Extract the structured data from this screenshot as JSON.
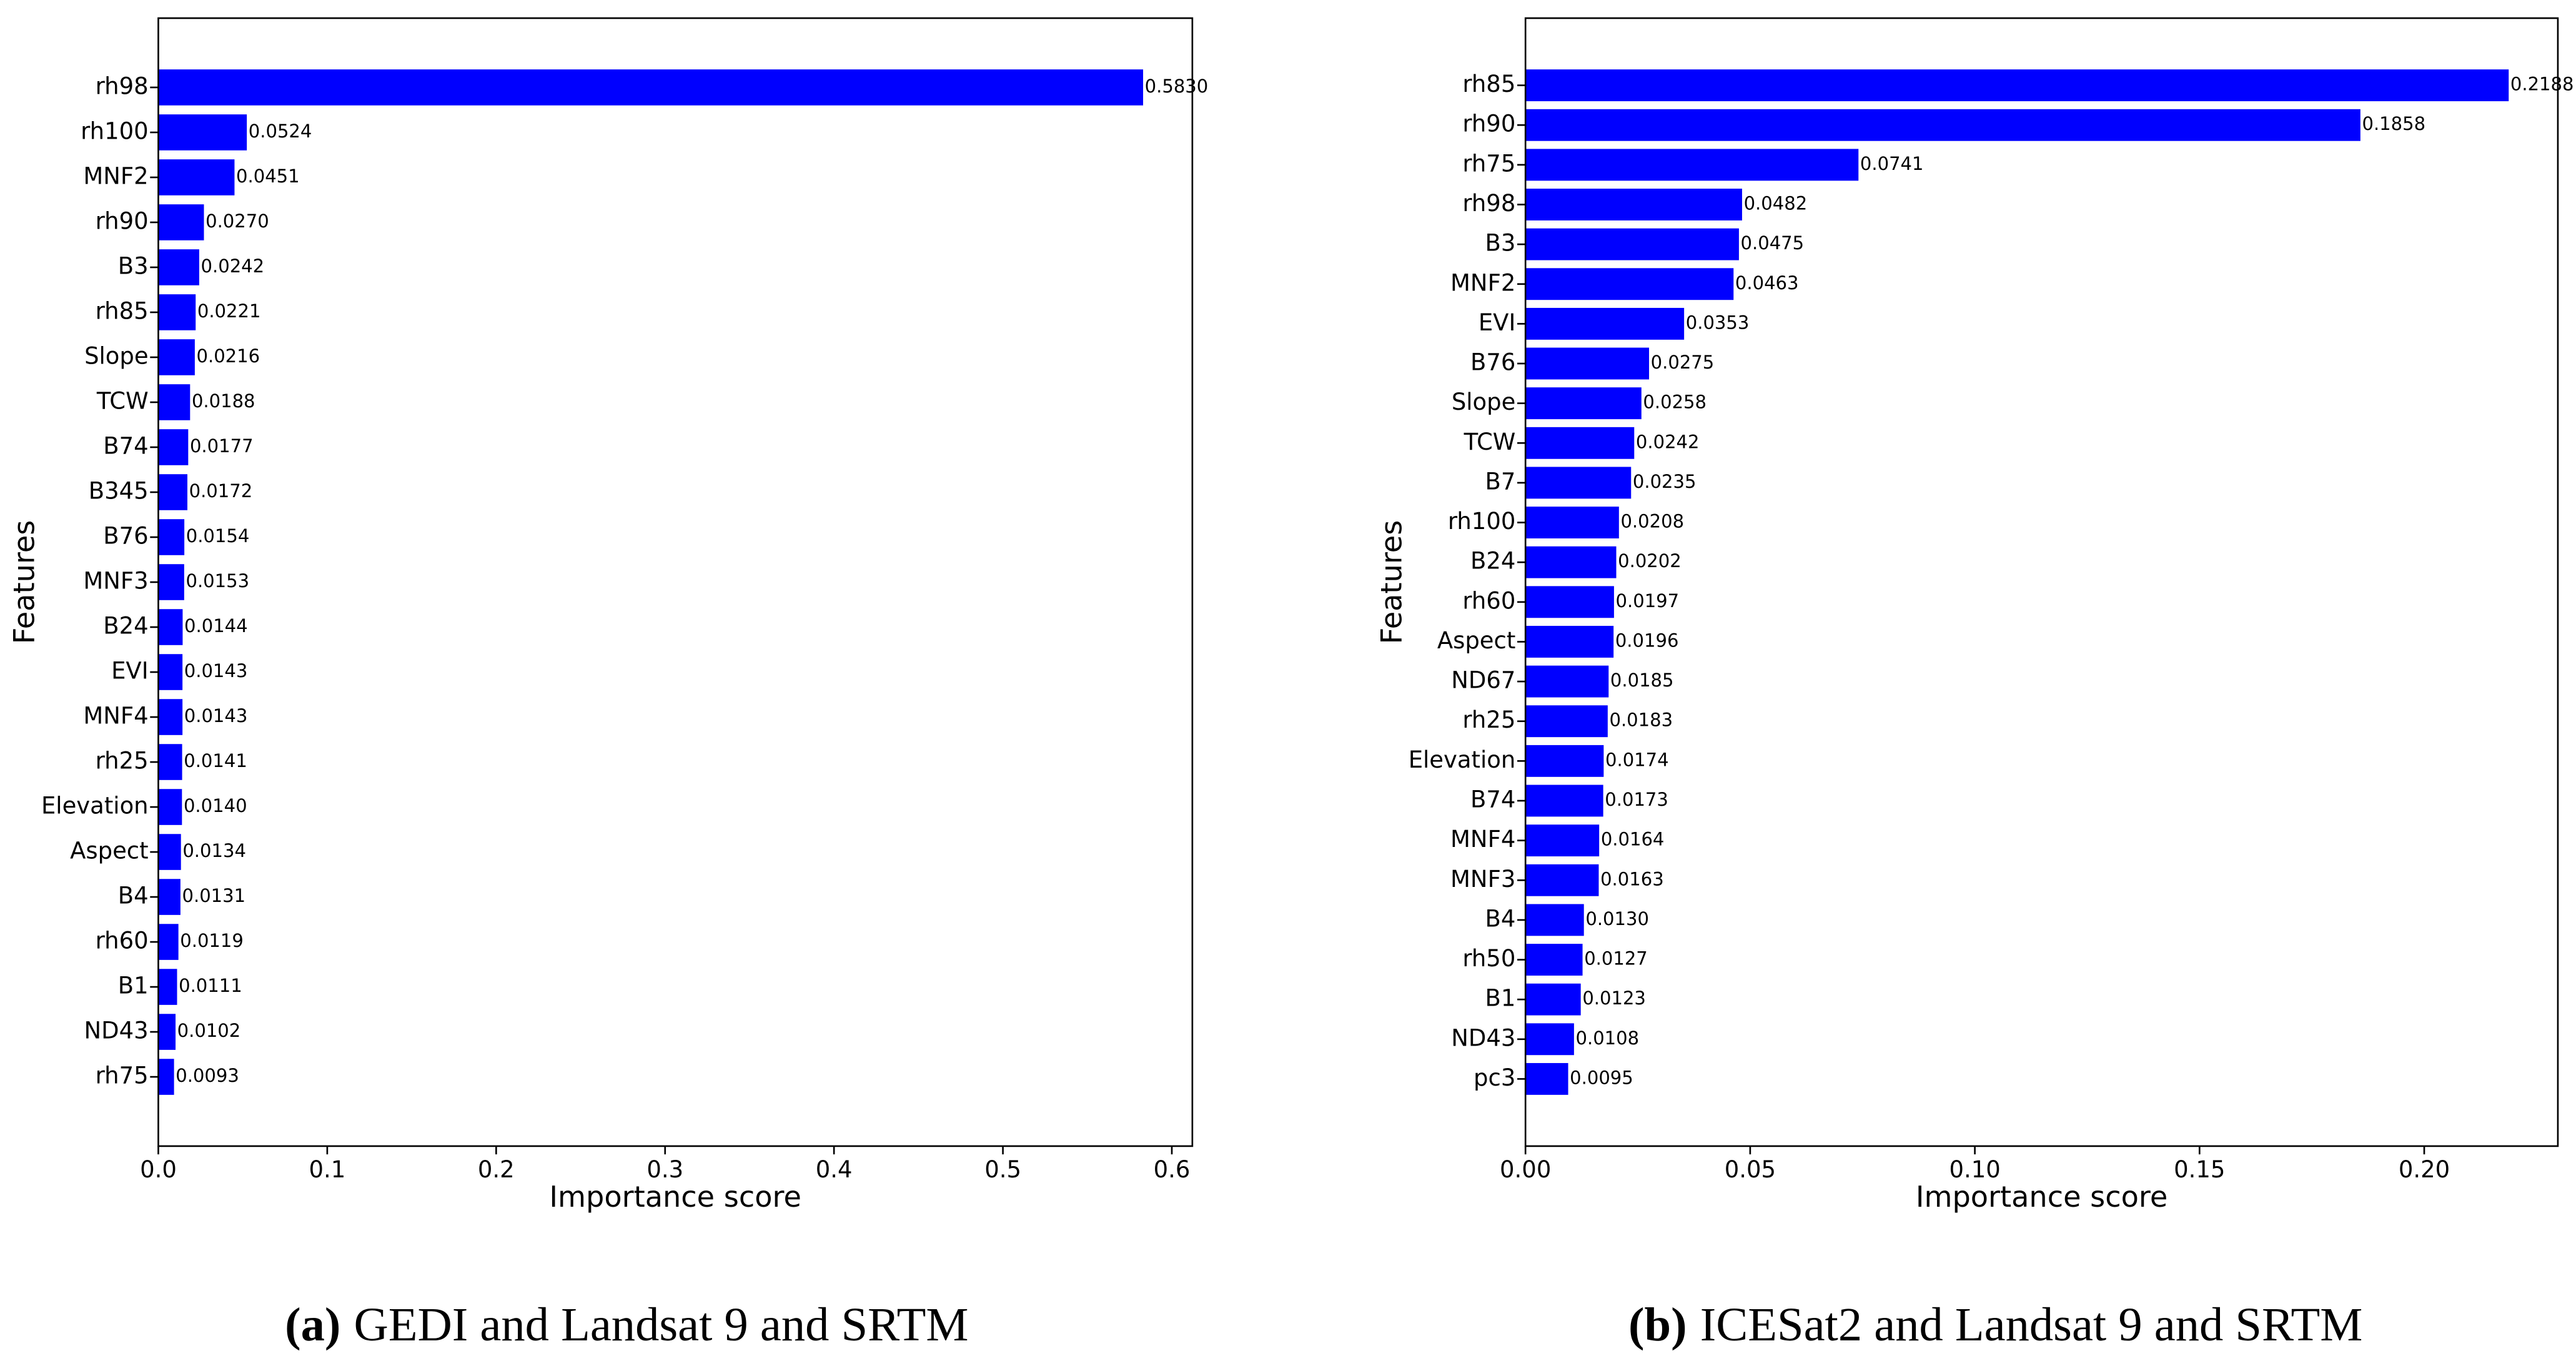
{
  "chart_data": [
    {
      "type": "barh",
      "caption_label": "(a)",
      "caption": "GEDI and Landsat 9 and SRTM",
      "xlabel": "Importance score",
      "ylabel": "Features",
      "color": "#0000ff",
      "categories": [
        "rh98",
        "rh100",
        "MNF2",
        "rh90",
        "B3",
        "rh85",
        "Slope",
        "TCW",
        "B74",
        "B345",
        "B76",
        "MNF3",
        "B24",
        "EVI",
        "MNF4",
        "rh25",
        "Elevation",
        "Aspect",
        "B4",
        "rh60",
        "B1",
        "ND43",
        "rh75"
      ],
      "values": [
        0.583,
        0.0524,
        0.0451,
        0.027,
        0.0242,
        0.0221,
        0.0216,
        0.0188,
        0.0177,
        0.0172,
        0.0154,
        0.0153,
        0.0144,
        0.0143,
        0.0143,
        0.0141,
        0.014,
        0.0134,
        0.0131,
        0.0119,
        0.0111,
        0.0102,
        0.0093
      ],
      "value_labels": [
        "0.5830",
        "0.0524",
        "0.0451",
        "0.0270",
        "0.0242",
        "0.0221",
        "0.0216",
        "0.0188",
        "0.0177",
        "0.0172",
        "0.0154",
        "0.0153",
        "0.0144",
        "0.0143",
        "0.0143",
        "0.0141",
        "0.0140",
        "0.0134",
        "0.0131",
        "0.0119",
        "0.0111",
        "0.0102",
        "0.0093"
      ],
      "xlim": [
        0,
        0.61215
      ],
      "xticks": [
        {
          "value": 0,
          "label": "0.0"
        },
        {
          "value": 0.1,
          "label": "0.1"
        },
        {
          "value": 0.2,
          "label": "0.2"
        },
        {
          "value": 0.3,
          "label": "0.3"
        },
        {
          "value": 0.4,
          "label": "0.4"
        },
        {
          "value": 0.5,
          "label": "0.5"
        },
        {
          "value": 0.6,
          "label": "0.6"
        }
      ]
    },
    {
      "type": "barh",
      "caption_label": "(b)",
      "caption": "ICESat2 and Landsat 9 and SRTM",
      "xlabel": "Importance score",
      "ylabel": "Features",
      "color": "#0000ff",
      "categories": [
        "rh85",
        "rh90",
        "rh75",
        "rh98",
        "B3",
        "MNF2",
        "EVI",
        "B76",
        "Slope",
        "TCW",
        "B7",
        "rh100",
        "B24",
        "rh60",
        "Aspect",
        "ND67",
        "rh25",
        "Elevation",
        "B74",
        "MNF4",
        "MNF3",
        "B4",
        "rh50",
        "B1",
        "ND43",
        "pc3"
      ],
      "values": [
        0.2188,
        0.1858,
        0.0741,
        0.0482,
        0.0475,
        0.0463,
        0.0353,
        0.0275,
        0.0258,
        0.0242,
        0.0235,
        0.0208,
        0.0202,
        0.0197,
        0.0196,
        0.0185,
        0.0183,
        0.0174,
        0.0173,
        0.0164,
        0.0163,
        0.013,
        0.0127,
        0.0123,
        0.0108,
        0.0095
      ],
      "value_labels": [
        "0.2188",
        "0.1858",
        "0.0741",
        "0.0482",
        "0.0475",
        "0.0463",
        "0.0353",
        "0.0275",
        "0.0258",
        "0.0242",
        "0.0235",
        "0.0208",
        "0.0202",
        "0.0197",
        "0.0196",
        "0.0185",
        "0.0183",
        "0.0174",
        "0.0173",
        "0.0164",
        "0.0163",
        "0.0130",
        "0.0127",
        "0.0123",
        "0.0108",
        "0.0095"
      ],
      "xlim": [
        0,
        0.22974
      ],
      "xticks": [
        {
          "value": 0,
          "label": "0.00"
        },
        {
          "value": 0.05,
          "label": "0.05"
        },
        {
          "value": 0.1,
          "label": "0.10"
        },
        {
          "value": 0.15,
          "label": "0.15"
        },
        {
          "value": 0.2,
          "label": "0.20"
        }
      ]
    }
  ]
}
